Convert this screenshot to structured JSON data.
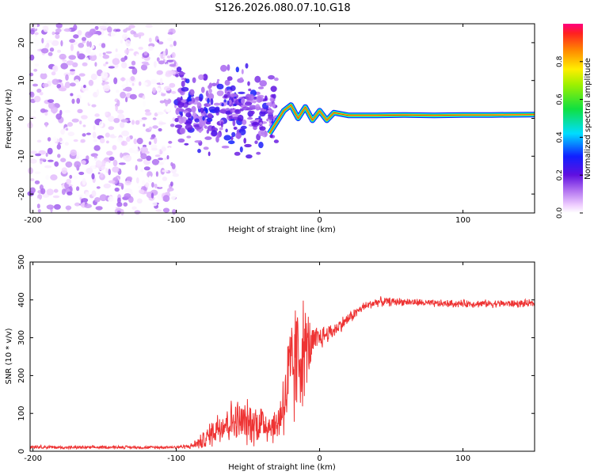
{
  "title": "S126.2026.080.07.10.G18",
  "chart_data": [
    {
      "type": "heatmap",
      "name": "spectrogram",
      "xlabel": "Height of straight line (km)",
      "ylabel": "Frequency (Hz)",
      "xlim": [
        -202,
        150
      ],
      "ylim": [
        -25,
        25
      ],
      "xticks": [
        -200,
        -100,
        0,
        100
      ],
      "yticks": [
        -20,
        -10,
        0,
        10,
        20
      ],
      "colorbar": {
        "label": "Normalized spectral amplitude",
        "range": [
          0,
          1
        ],
        "ticks": [
          0.0,
          0.2,
          0.4,
          0.6,
          0.8
        ],
        "tick_labels": [
          "0.0",
          "0.2",
          "0.4",
          "0.6",
          "0.8"
        ]
      },
      "regions": [
        {
          "x_range": [
            -202,
            -100
          ],
          "description": "broadband noise",
          "amplitude": [
            0.0,
            0.15
          ]
        },
        {
          "x_range": [
            -100,
            -30
          ],
          "description": "scattered energy near 0-5 Hz",
          "amplitude": [
            0.1,
            0.3
          ]
        },
        {
          "x_range": [
            -30,
            150
          ],
          "description": "narrow line near 1 Hz",
          "amplitude": [
            0.8,
            1.0
          ]
        }
      ],
      "ridge": {
        "x": [
          -35,
          -30,
          -25,
          -20,
          -15,
          -10,
          -5,
          0,
          5,
          10,
          20,
          40,
          60,
          80,
          100,
          120,
          150
        ],
        "y": [
          -4,
          -1,
          2,
          3.5,
          0,
          3,
          -0.5,
          2,
          -0.5,
          1.5,
          0.8,
          0.8,
          0.9,
          0.8,
          0.9,
          0.9,
          1.0
        ]
      }
    },
    {
      "type": "line",
      "name": "snr",
      "xlabel": "Height of straight line (km)",
      "ylabel": "SNR (10 * v/v)",
      "xlim": [
        -202,
        150
      ],
      "ylim": [
        0,
        500
      ],
      "xticks": [
        -200,
        -100,
        0,
        100
      ],
      "yticks": [
        0,
        100,
        200,
        300,
        400,
        500
      ],
      "color": "#ee3333",
      "series": [
        {
          "name": "SNR",
          "x": [
            -200,
            -180,
            -160,
            -140,
            -120,
            -100,
            -90,
            -80,
            -70,
            -60,
            -50,
            -40,
            -30,
            -20,
            -15,
            -10,
            -5,
            0,
            5,
            10,
            20,
            30,
            40,
            60,
            80,
            100,
            120,
            150
          ],
          "y": [
            12,
            10,
            10,
            11,
            10,
            11,
            13,
            30,
            70,
            80,
            75,
            75,
            65,
            200,
            250,
            270,
            280,
            300,
            310,
            320,
            350,
            380,
            395,
            395,
            390,
            390,
            390,
            390
          ],
          "noise_amplitude": [
            6,
            5,
            5,
            5,
            5,
            5,
            8,
            30,
            60,
            70,
            70,
            70,
            50,
            200,
            200,
            150,
            60,
            40,
            30,
            25,
            20,
            15,
            15,
            12,
            12,
            12,
            12,
            12
          ]
        }
      ]
    }
  ]
}
